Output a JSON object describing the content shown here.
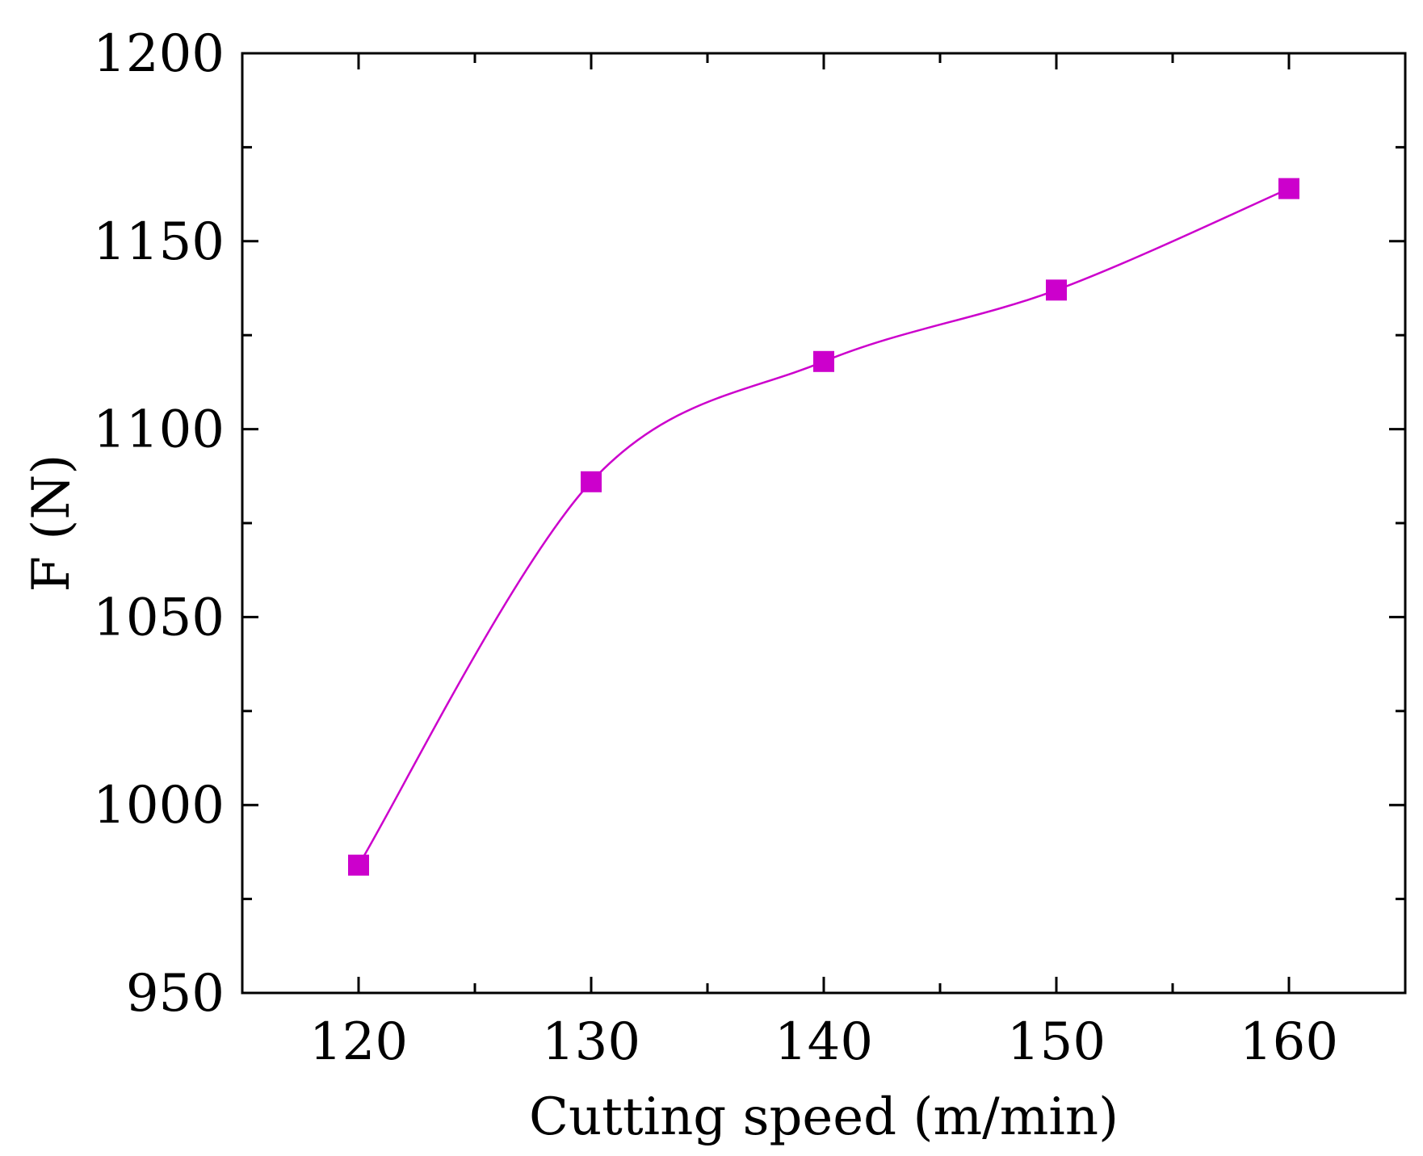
{
  "chart_data": {
    "type": "line",
    "title": "",
    "xlabel": "Cutting speed (m/min)",
    "ylabel": "F (N)",
    "xlim": [
      115,
      165
    ],
    "ylim": [
      950,
      1200
    ],
    "x_ticks": [
      120,
      130,
      140,
      150,
      160
    ],
    "x_minor_ticks": [
      125,
      135,
      145,
      155
    ],
    "y_ticks": [
      950,
      1000,
      1050,
      1100,
      1150,
      1200
    ],
    "y_minor_ticks": [
      975,
      1025,
      1075,
      1125,
      1175
    ],
    "grid": false,
    "series": [
      {
        "name": "F",
        "marker": "square",
        "line": "smooth",
        "color": "#cc00cc",
        "x": [
          120,
          130,
          140,
          150,
          160
        ],
        "values": [
          984,
          1086,
          1118,
          1137,
          1164
        ]
      }
    ]
  }
}
